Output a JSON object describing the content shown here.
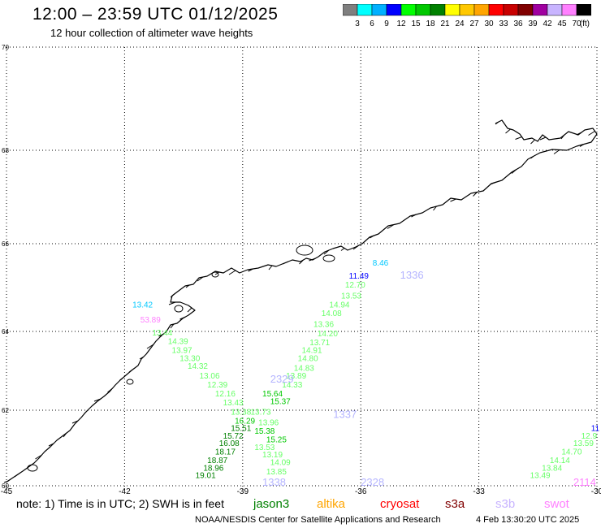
{
  "header": {
    "title": "12:00 – 23:59 UTC 01/12/2025",
    "subtitle": "12 hour collection of altimeter wave heights"
  },
  "colorbar": {
    "colors": [
      "#7f7f7f",
      "#00ffff",
      "#00b0ff",
      "#0000ff",
      "#00ff00",
      "#00c800",
      "#008000",
      "#ffff00",
      "#ffc800",
      "#ffa500",
      "#ff0000",
      "#c80000",
      "#800000",
      "#a000a0",
      "#c8b4ff",
      "#ff80ff",
      "#000000"
    ],
    "labels": [
      "3",
      "6",
      "9",
      "12",
      "15",
      "18",
      "21",
      "24",
      "27",
      "30",
      "33",
      "36",
      "39",
      "42",
      "45",
      "70"
    ],
    "unit": "(ft)"
  },
  "map": {
    "lat_labels": [
      "70",
      "68",
      "66",
      "64",
      "62",
      "60"
    ],
    "lon_labels": [
      "-45",
      "-42",
      "-39",
      "-36",
      "-33",
      "-30"
    ],
    "lat_range": [
      60,
      70
    ],
    "lon_range": [
      -45,
      -30
    ],
    "coast_color": "#000000",
    "grid_style": "dotted",
    "track_ids": [
      {
        "text": "1336",
        "lon": -35.0,
        "lat": 65.2,
        "color": "#b4b4ff"
      },
      {
        "text": "2329",
        "lon": -38.3,
        "lat": 62.7,
        "color": "#b4b4ff"
      },
      {
        "text": "1337",
        "lon": -36.7,
        "lat": 61.8,
        "color": "#b4b4ff"
      },
      {
        "text": "1338",
        "lon": -38.5,
        "lat": 60.0,
        "color": "#b4b4ff"
      },
      {
        "text": "2328",
        "lon": -36.0,
        "lat": 60.0,
        "color": "#b4b4ff"
      },
      {
        "text": "2114",
        "lon": -30.6,
        "lat": 60.0,
        "color": "#ff80ff"
      }
    ],
    "observations": [
      {
        "text": "8.46",
        "lon": -35.7,
        "lat": 65.5,
        "color": "#00c8ff"
      },
      {
        "text": "11.49",
        "lon": -36.3,
        "lat": 65.2,
        "color": "#0000ff"
      },
      {
        "text": "12.70",
        "lon": -36.4,
        "lat": 65.0,
        "color": "#66ff66"
      },
      {
        "text": "13.53",
        "lon": -36.5,
        "lat": 64.75,
        "color": "#66ff66"
      },
      {
        "text": "14.94",
        "lon": -36.8,
        "lat": 64.55,
        "color": "#66ff66"
      },
      {
        "text": "14.08",
        "lon": -37.0,
        "lat": 64.35,
        "color": "#66ff66"
      },
      {
        "text": "13.36",
        "lon": -37.2,
        "lat": 64.1,
        "color": "#66ff66"
      },
      {
        "text": "14.20",
        "lon": -37.1,
        "lat": 63.88,
        "color": "#66ff66"
      },
      {
        "text": "13.71",
        "lon": -37.3,
        "lat": 63.65,
        "color": "#66ff66"
      },
      {
        "text": "14.91",
        "lon": -37.5,
        "lat": 63.45,
        "color": "#66ff66"
      },
      {
        "text": "14.80",
        "lon": -37.6,
        "lat": 63.25,
        "color": "#66ff66"
      },
      {
        "text": "14.83",
        "lon": -37.7,
        "lat": 63.0,
        "color": "#66ff66"
      },
      {
        "text": "13.89",
        "lon": -37.9,
        "lat": 62.8,
        "color": "#66ff66"
      },
      {
        "text": "14.33",
        "lon": -38.0,
        "lat": 62.58,
        "color": "#66ff66"
      },
      {
        "text": "15.64",
        "lon": -38.5,
        "lat": 62.35,
        "color": "#00c800"
      },
      {
        "text": "15.37",
        "lon": -38.3,
        "lat": 62.15,
        "color": "#00c800"
      },
      {
        "text": "13.73",
        "lon": -38.8,
        "lat": 61.88,
        "color": "#66ff66"
      },
      {
        "text": "13.96",
        "lon": -38.6,
        "lat": 61.6,
        "color": "#66ff66"
      },
      {
        "text": "15.38",
        "lon": -38.7,
        "lat": 61.38,
        "color": "#00c800"
      },
      {
        "text": "15.25",
        "lon": -38.4,
        "lat": 61.15,
        "color": "#00c800"
      },
      {
        "text": "13.53",
        "lon": -38.7,
        "lat": 60.95,
        "color": "#66ff66"
      },
      {
        "text": "13.19",
        "lon": -38.5,
        "lat": 60.75,
        "color": "#66ff66"
      },
      {
        "text": "14.09",
        "lon": -38.3,
        "lat": 60.55,
        "color": "#66ff66"
      },
      {
        "text": "13.85",
        "lon": -38.4,
        "lat": 60.3,
        "color": "#66ff66"
      },
      {
        "text": "53.89",
        "lon": -41.6,
        "lat": 64.2,
        "color": "#ff80ff"
      },
      {
        "text": "13.44",
        "lon": -41.3,
        "lat": 63.9,
        "color": "#66ff66"
      },
      {
        "text": "14.39",
        "lon": -40.9,
        "lat": 63.68,
        "color": "#66ff66"
      },
      {
        "text": "13.97",
        "lon": -40.8,
        "lat": 63.45,
        "color": "#66ff66"
      },
      {
        "text": "13.30",
        "lon": -40.6,
        "lat": 63.25,
        "color": "#66ff66"
      },
      {
        "text": "14.32",
        "lon": -40.4,
        "lat": 63.05,
        "color": "#66ff66"
      },
      {
        "text": "13.06",
        "lon": -40.1,
        "lat": 62.8,
        "color": "#66ff66"
      },
      {
        "text": "12.39",
        "lon": -39.9,
        "lat": 62.58,
        "color": "#66ff66"
      },
      {
        "text": "12.16",
        "lon": -39.7,
        "lat": 62.35,
        "color": "#66ff66"
      },
      {
        "text": "13.43",
        "lon": -39.5,
        "lat": 62.12,
        "color": "#66ff66"
      },
      {
        "text": "13.38",
        "lon": -39.3,
        "lat": 61.88,
        "color": "#66ff66"
      },
      {
        "text": "16.29",
        "lon": -39.2,
        "lat": 61.65,
        "color": "#00c800"
      },
      {
        "text": "15.51",
        "lon": -39.3,
        "lat": 61.45,
        "color": "#008000"
      },
      {
        "text": "15.72",
        "lon": -39.5,
        "lat": 61.25,
        "color": "#008000"
      },
      {
        "text": "16.08",
        "lon": -39.6,
        "lat": 61.05,
        "color": "#008000"
      },
      {
        "text": "18.17",
        "lon": -39.7,
        "lat": 60.83,
        "color": "#008000"
      },
      {
        "text": "18.87",
        "lon": -39.9,
        "lat": 60.6,
        "color": "#008000"
      },
      {
        "text": "18.96",
        "lon": -40.0,
        "lat": 60.4,
        "color": "#008000"
      },
      {
        "text": "19.01",
        "lon": -40.2,
        "lat": 60.2,
        "color": "#008000"
      },
      {
        "text": "11",
        "lon": -30.15,
        "lat": 61.45,
        "color": "#0000ff"
      },
      {
        "text": "12.9",
        "lon": -30.4,
        "lat": 61.25,
        "color": "#66ff66"
      },
      {
        "text": "13.59",
        "lon": -30.6,
        "lat": 61.05,
        "color": "#66ff66"
      },
      {
        "text": "14.70",
        "lon": -30.9,
        "lat": 60.83,
        "color": "#66ff66"
      },
      {
        "text": "14.14",
        "lon": -31.2,
        "lat": 60.6,
        "color": "#66ff66"
      },
      {
        "text": "13.84",
        "lon": -31.4,
        "lat": 60.4,
        "color": "#66ff66"
      },
      {
        "text": "13.49",
        "lon": -31.7,
        "lat": 60.2,
        "color": "#66ff66"
      },
      {
        "text": "13.42",
        "lon": -41.8,
        "lat": 64.55,
        "color": "#00c8ff"
      }
    ]
  },
  "footer": {
    "note": "note:  1) Time is in UTC; 2) SWH is in feet",
    "satellites": [
      {
        "name": "jason3",
        "color": "#008000"
      },
      {
        "name": "altika",
        "color": "#ffa500"
      },
      {
        "name": "cryosat",
        "color": "#ff0000"
      },
      {
        "name": "s3a",
        "color": "#800000"
      },
      {
        "name": "s3b",
        "color": "#c8b4ff"
      },
      {
        "name": "swot",
        "color": "#ff80ff"
      }
    ],
    "credit": "NOAA/NESDIS Center for Satellite Applications and Research",
    "timestamp": "4 Feb 13:30:20 UTC 2025"
  }
}
